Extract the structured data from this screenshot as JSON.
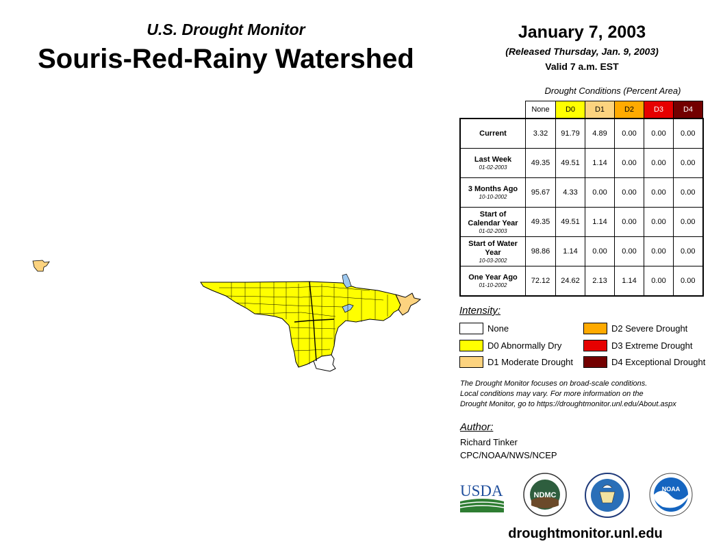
{
  "header": {
    "subtitle": "U.S. Drought Monitor",
    "title": "Souris-Red-Rainy Watershed",
    "date": "January 7, 2003",
    "released": "(Released Thursday, Jan. 9, 2003)",
    "valid": "Valid 7 a.m. EST"
  },
  "table": {
    "title": "Drought Conditions (Percent Area)",
    "columns": [
      "None",
      "D0",
      "D1",
      "D2",
      "D3",
      "D4"
    ],
    "rows": [
      {
        "label": "Current",
        "date": "",
        "values": [
          "3.32",
          "91.79",
          "4.89",
          "0.00",
          "0.00",
          "0.00"
        ]
      },
      {
        "label": "Last Week",
        "date": "01-02-2003",
        "values": [
          "49.35",
          "49.51",
          "1.14",
          "0.00",
          "0.00",
          "0.00"
        ]
      },
      {
        "label": "3 Months Ago",
        "date": "10-10-2002",
        "values": [
          "95.67",
          "4.33",
          "0.00",
          "0.00",
          "0.00",
          "0.00"
        ]
      },
      {
        "label": "Start of Calendar Year",
        "date": "01-02-2003",
        "values": [
          "49.35",
          "49.51",
          "1.14",
          "0.00",
          "0.00",
          "0.00"
        ]
      },
      {
        "label": "Start of Water Year",
        "date": "10-03-2002",
        "values": [
          "98.86",
          "1.14",
          "0.00",
          "0.00",
          "0.00",
          "0.00"
        ]
      },
      {
        "label": "One Year Ago",
        "date": "01-10-2002",
        "values": [
          "72.12",
          "24.62",
          "2.13",
          "1.14",
          "0.00",
          "0.00"
        ]
      }
    ]
  },
  "colors": {
    "none": "#ffffff",
    "d0": "#ffff00",
    "d1": "#fcd37f",
    "d2": "#ffaa00",
    "d3": "#e60000",
    "d4": "#730000",
    "water": "#9cc8f0",
    "usda_blue": "#1f4e9c",
    "usda_green": "#2e7d32",
    "ndmc_green": "#2e5e3e",
    "noaa_blue": "#1565c0"
  },
  "legend": {
    "title": "Intensity:",
    "items": [
      {
        "key": "none",
        "label": "None"
      },
      {
        "key": "d0",
        "label": "D0 Abnormally Dry"
      },
      {
        "key": "d1",
        "label": "D1 Moderate Drought"
      },
      {
        "key": "d2",
        "label": "D2 Severe Drought"
      },
      {
        "key": "d3",
        "label": "D3 Extreme Drought"
      },
      {
        "key": "d4",
        "label": "D4 Exceptional Drought"
      }
    ]
  },
  "disclaimer": {
    "line1": "The Drought Monitor focuses on broad-scale conditions.",
    "line2": "Local conditions may vary. For more information on the",
    "line3": "Drought Monitor, go to https://droughtmonitor.unl.edu/About.aspx"
  },
  "author": {
    "title": "Author:",
    "name": "Richard Tinker",
    "org": "CPC/NOAA/NWS/NCEP"
  },
  "logos": {
    "usda": "USDA",
    "ndmc": "NDMC",
    "noaa": "NOAA"
  },
  "footer": {
    "website": "droughtmonitor.unl.edu"
  }
}
